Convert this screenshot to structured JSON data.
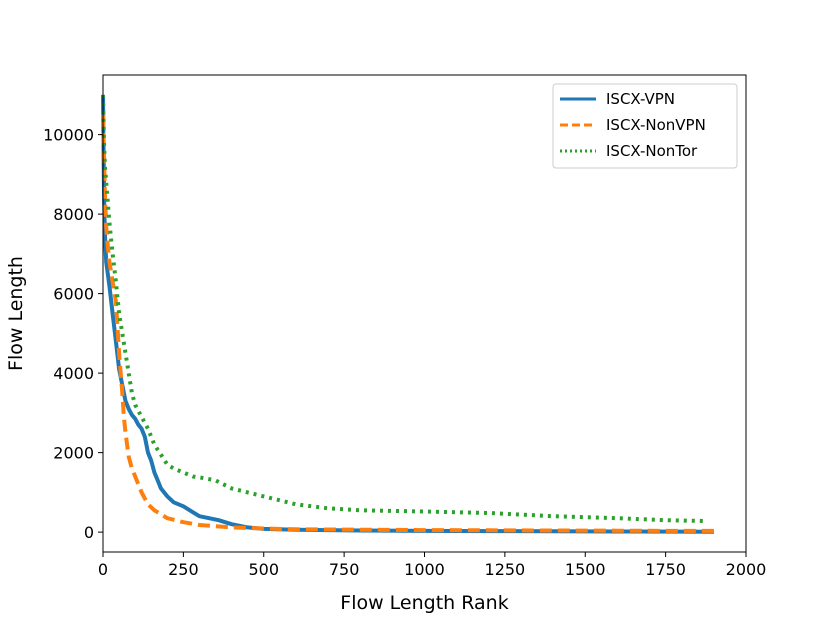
{
  "chart_data": {
    "type": "line",
    "title": "",
    "xlabel": "Flow Length Rank",
    "ylabel": "Flow Length",
    "xlim": [
      0,
      2000
    ],
    "ylim": [
      -500,
      11500
    ],
    "xticks": [
      0,
      250,
      500,
      750,
      1000,
      1250,
      1500,
      1750,
      2000
    ],
    "yticks": [
      0,
      2000,
      4000,
      6000,
      8000,
      10000
    ],
    "grid": false,
    "legend_position": "top-right",
    "series": [
      {
        "name": "ISCX-VPN",
        "color": "#1f77b4",
        "style": "solid",
        "x": [
          0,
          3,
          6,
          10,
          15,
          20,
          30,
          40,
          50,
          60,
          70,
          80,
          90,
          100,
          110,
          120,
          130,
          140,
          150,
          160,
          170,
          180,
          200,
          220,
          250,
          280,
          300,
          330,
          360,
          400,
          450,
          500,
          600,
          700,
          800,
          1000,
          1200,
          1400,
          1600,
          1800,
          1900
        ],
        "y": [
          11000,
          8500,
          7500,
          6800,
          6500,
          6200,
          5500,
          4800,
          4100,
          3700,
          3300,
          3100,
          2950,
          2850,
          2700,
          2600,
          2400,
          2000,
          1800,
          1500,
          1300,
          1100,
          900,
          750,
          650,
          500,
          400,
          350,
          300,
          200,
          120,
          80,
          60,
          50,
          40,
          30,
          25,
          20,
          15,
          12,
          10
        ]
      },
      {
        "name": "ISCX-NonVPN",
        "color": "#ff7f0e",
        "style": "dashed",
        "x": [
          0,
          3,
          6,
          10,
          15,
          20,
          30,
          40,
          50,
          55,
          60,
          65,
          70,
          80,
          90,
          100,
          120,
          140,
          160,
          180,
          200,
          250,
          300,
          400,
          500,
          600,
          800,
          1000,
          1200,
          1400,
          1600,
          1800,
          1910
        ],
        "y": [
          10500,
          9500,
          8500,
          7700,
          7200,
          6800,
          6300,
          5800,
          4500,
          4000,
          3500,
          2900,
          2500,
          1900,
          1600,
          1400,
          1000,
          700,
          550,
          450,
          350,
          250,
          180,
          120,
          90,
          70,
          60,
          50,
          45,
          40,
          35,
          30,
          30
        ]
      },
      {
        "name": "ISCX-NonTor",
        "color": "#2ca02c",
        "style": "dotted",
        "x": [
          0,
          3,
          6,
          10,
          15,
          20,
          30,
          40,
          50,
          60,
          70,
          80,
          90,
          100,
          120,
          140,
          160,
          180,
          200,
          220,
          250,
          280,
          300,
          350,
          400,
          500,
          600,
          700,
          800,
          1000,
          1200,
          1400,
          1600,
          1750,
          1870
        ],
        "y": [
          11000,
          9800,
          9200,
          8800,
          8300,
          7800,
          7000,
          6300,
          5500,
          5000,
          4500,
          4000,
          3500,
          3200,
          2900,
          2600,
          2200,
          1950,
          1700,
          1600,
          1500,
          1400,
          1380,
          1300,
          1100,
          900,
          700,
          600,
          550,
          520,
          480,
          400,
          350,
          300,
          280
        ]
      }
    ]
  }
}
